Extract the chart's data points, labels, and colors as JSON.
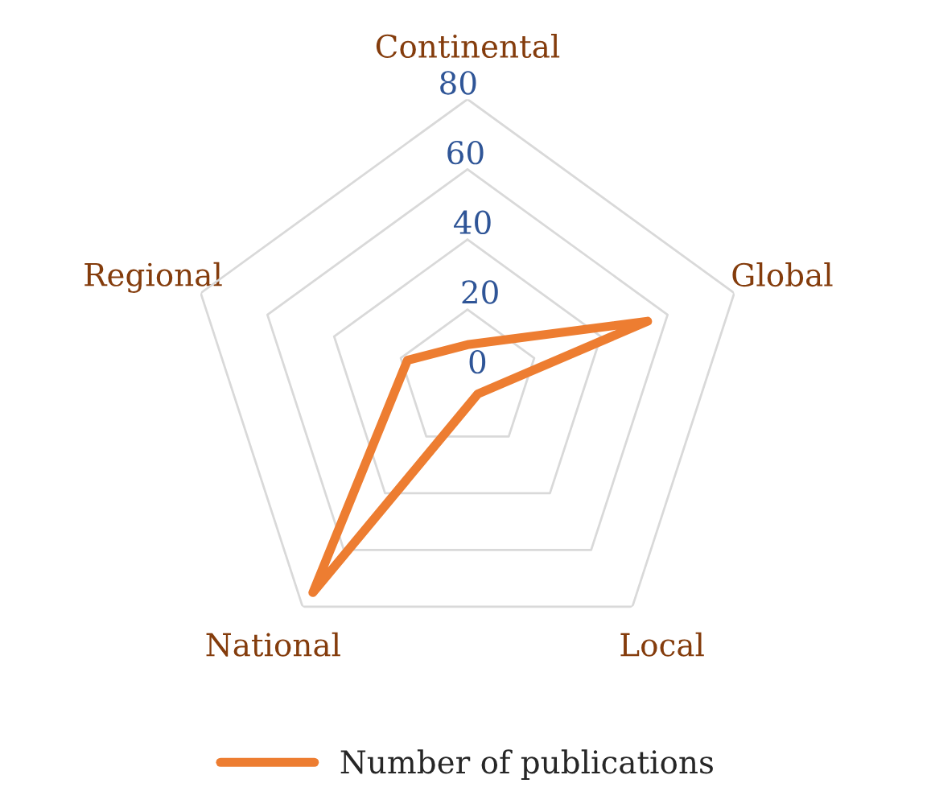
{
  "chart_data": {
    "type": "radar",
    "categories": [
      "Continental",
      "Global",
      "Local",
      "National",
      "Regional"
    ],
    "series": [
      {
        "name": "Number of publications",
        "color": "#ed7d31",
        "values": [
          10,
          54,
          5,
          75,
          18
        ]
      }
    ],
    "ylim": [
      0,
      80
    ],
    "yticks": [
      0,
      20,
      40,
      60,
      80
    ],
    "grid": true,
    "legend": "bottom",
    "marker": "none",
    "line_style": "solid"
  }
}
